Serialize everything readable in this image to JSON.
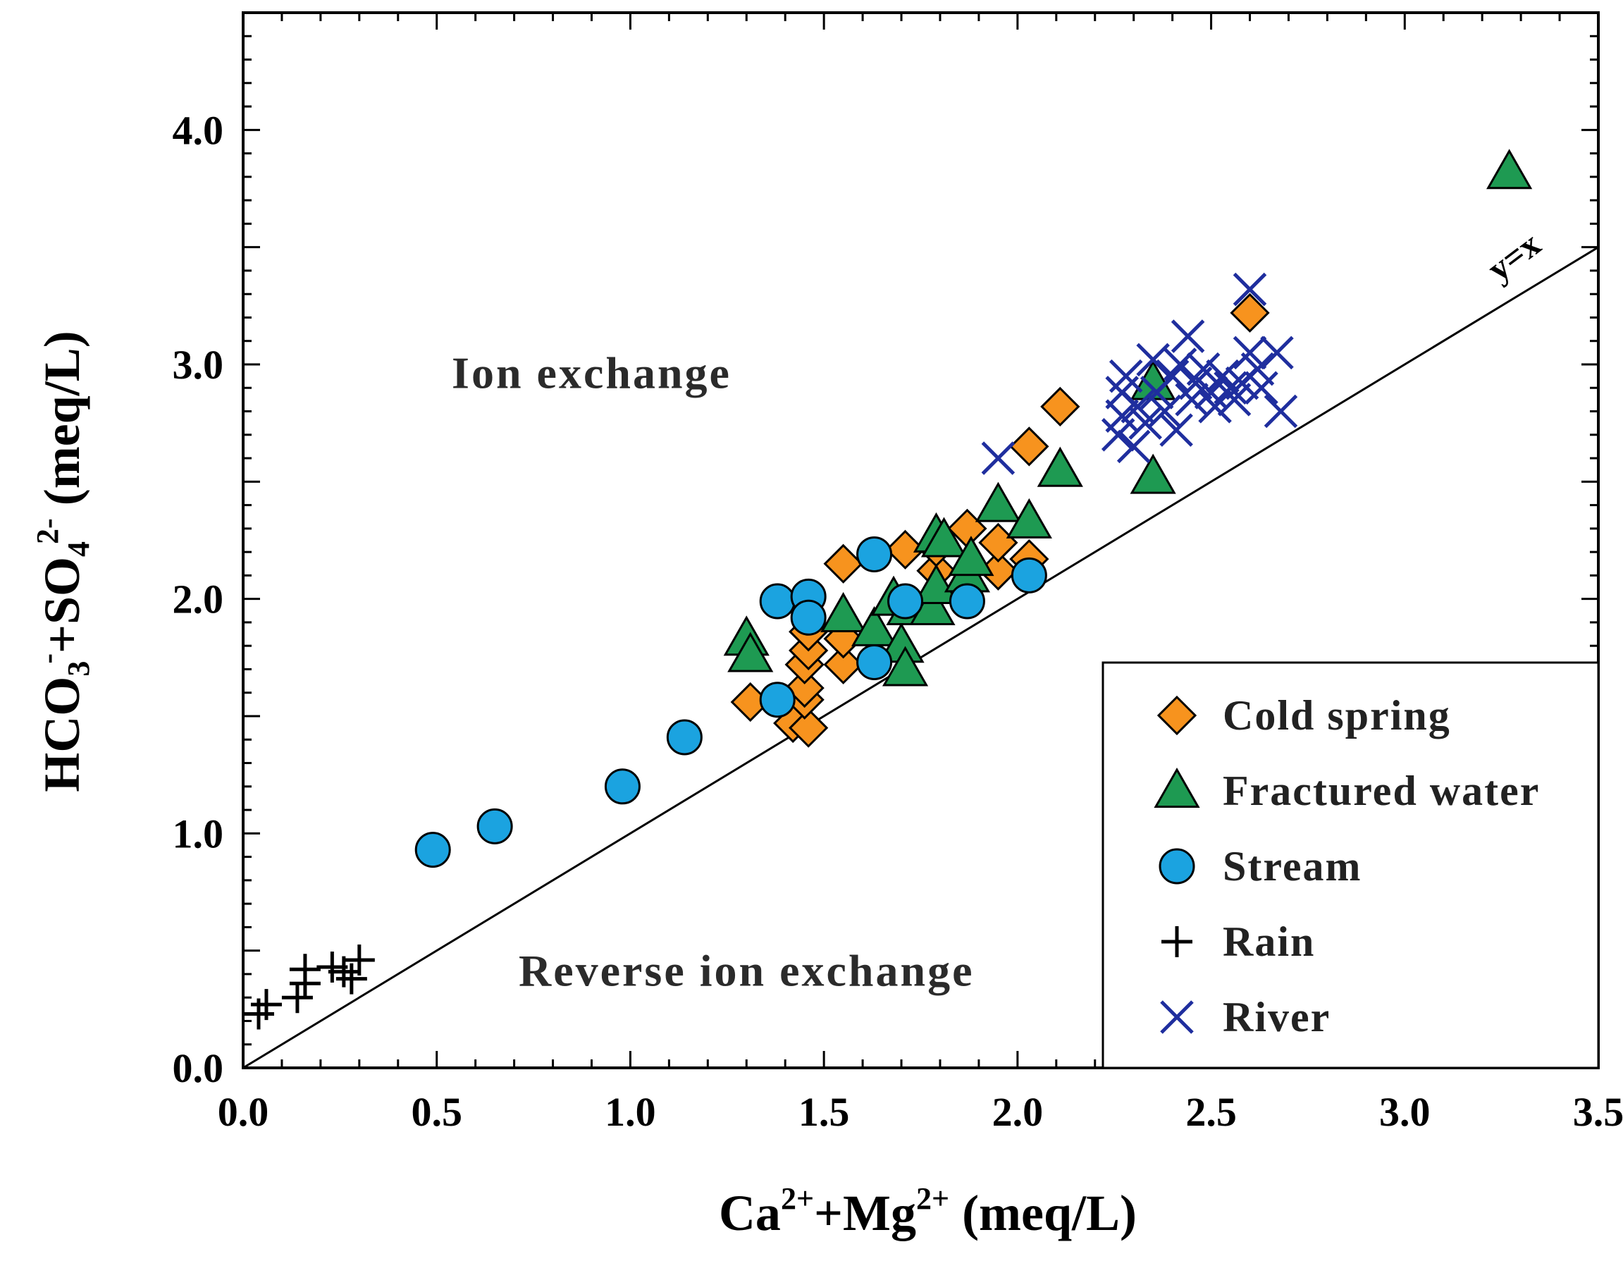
{
  "chart_data": {
    "type": "scatter",
    "title": "",
    "xlabel_parts": [
      "Ca",
      "2+",
      "+Mg",
      "2+",
      " (meq/L)"
    ],
    "ylabel_parts": [
      "HCO",
      "3",
      "-",
      "+SO",
      "4",
      "2-",
      " (meq/L)"
    ],
    "xlim": [
      0,
      3.5
    ],
    "ylim": [
      0,
      4.5
    ],
    "x_ticks": [
      "0.0",
      "0.5",
      "1.0",
      "1.5",
      "2.0",
      "2.5",
      "3.0",
      "3.5"
    ],
    "y_ticks": [
      "0.0",
      "1.0",
      "2.0",
      "3.0",
      "4.0"
    ],
    "reference_line": {
      "label": "y=x",
      "slope": 1,
      "intercept": 0
    },
    "regions": [
      {
        "label": "Ion exchange",
        "x": 0.9,
        "y": 2.9
      },
      {
        "label": "Reverse ion exchange",
        "x": 1.3,
        "y": 0.35
      }
    ],
    "legend_position": "bottom-right",
    "series": [
      {
        "name": "Cold spring",
        "marker": "diamond",
        "color": "#F7931E",
        "points": [
          [
            1.31,
            1.56
          ],
          [
            1.42,
            1.47
          ],
          [
            1.46,
            1.45
          ],
          [
            1.45,
            1.57
          ],
          [
            1.45,
            1.62
          ],
          [
            1.45,
            1.72
          ],
          [
            1.46,
            1.78
          ],
          [
            1.46,
            1.86
          ],
          [
            1.55,
            1.72
          ],
          [
            1.55,
            1.83
          ],
          [
            1.55,
            2.15
          ],
          [
            1.71,
            2.21
          ],
          [
            1.79,
            2.12
          ],
          [
            1.79,
            2.22
          ],
          [
            1.87,
            2.3
          ],
          [
            1.95,
            2.12
          ],
          [
            1.95,
            2.24
          ],
          [
            2.03,
            2.17
          ],
          [
            2.03,
            2.65
          ],
          [
            2.11,
            2.82
          ],
          [
            2.6,
            3.22
          ]
        ]
      },
      {
        "name": "Fractured water",
        "marker": "triangle",
        "color": "#1E9A52",
        "points": [
          [
            1.3,
            1.83
          ],
          [
            1.31,
            1.76
          ],
          [
            1.55,
            1.93
          ],
          [
            1.63,
            1.87
          ],
          [
            1.68,
            2.0
          ],
          [
            1.7,
            1.8
          ],
          [
            1.71,
            1.7
          ],
          [
            1.72,
            1.96
          ],
          [
            1.78,
            1.96
          ],
          [
            1.79,
            2.05
          ],
          [
            1.79,
            2.27
          ],
          [
            1.81,
            2.25
          ],
          [
            1.87,
            2.1
          ],
          [
            1.88,
            2.17
          ],
          [
            1.95,
            2.4
          ],
          [
            2.03,
            2.33
          ],
          [
            2.11,
            2.55
          ],
          [
            2.35,
            2.52
          ],
          [
            2.35,
            2.92
          ],
          [
            3.27,
            3.82
          ]
        ]
      },
      {
        "name": "Stream",
        "marker": "circle",
        "color": "#1BA3E0",
        "points": [
          [
            0.49,
            0.93
          ],
          [
            0.65,
            1.03
          ],
          [
            0.98,
            1.2
          ],
          [
            1.14,
            1.41
          ],
          [
            1.38,
            1.57
          ],
          [
            1.38,
            1.99
          ],
          [
            1.46,
            2.01
          ],
          [
            1.46,
            1.92
          ],
          [
            1.63,
            2.19
          ],
          [
            1.63,
            1.73
          ],
          [
            1.71,
            1.99
          ],
          [
            1.87,
            1.99
          ],
          [
            2.03,
            2.1
          ]
        ]
      },
      {
        "name": "Rain",
        "marker": "plus",
        "color": "#000000",
        "points": [
          [
            0.04,
            0.23
          ],
          [
            0.06,
            0.27
          ],
          [
            0.14,
            0.3
          ],
          [
            0.16,
            0.36
          ],
          [
            0.16,
            0.42
          ],
          [
            0.23,
            0.43
          ],
          [
            0.26,
            0.41
          ],
          [
            0.28,
            0.38
          ],
          [
            0.3,
            0.46
          ]
        ]
      },
      {
        "name": "River",
        "marker": "x",
        "color": "#1F2E9E",
        "points": [
          [
            1.95,
            2.6
          ],
          [
            2.26,
            2.7
          ],
          [
            2.27,
            2.78
          ],
          [
            2.27,
            2.88
          ],
          [
            2.28,
            2.95
          ],
          [
            2.3,
            2.65
          ],
          [
            2.31,
            2.82
          ],
          [
            2.33,
            2.75
          ],
          [
            2.35,
            3.02
          ],
          [
            2.36,
            2.88
          ],
          [
            2.38,
            2.8
          ],
          [
            2.4,
            2.95
          ],
          [
            2.41,
            2.72
          ],
          [
            2.42,
            3.0
          ],
          [
            2.44,
            3.12
          ],
          [
            2.45,
            2.85
          ],
          [
            2.46,
            2.92
          ],
          [
            2.48,
            2.98
          ],
          [
            2.5,
            2.88
          ],
          [
            2.51,
            2.82
          ],
          [
            2.53,
            2.95
          ],
          [
            2.55,
            2.9
          ],
          [
            2.56,
            2.85
          ],
          [
            2.58,
            2.92
          ],
          [
            2.6,
            3.32
          ],
          [
            2.6,
            3.05
          ],
          [
            2.62,
            2.98
          ],
          [
            2.63,
            2.9
          ],
          [
            2.67,
            3.05
          ],
          [
            2.68,
            2.8
          ]
        ]
      }
    ]
  }
}
